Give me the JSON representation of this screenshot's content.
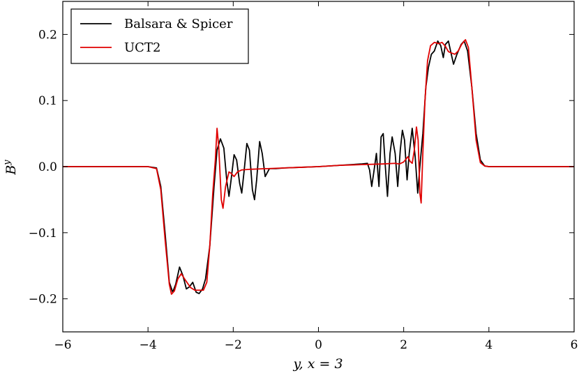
{
  "chart_data": {
    "type": "line",
    "title": "",
    "xlabel": "y,  x = 3",
    "ylabel": "B",
    "ylabel_superscript": "y",
    "xlim": [
      -6,
      6
    ],
    "ylim": [
      -0.25,
      0.25
    ],
    "xticks": [
      -6,
      -4,
      -2,
      0,
      2,
      4,
      6
    ],
    "xtick_labels": [
      "−6",
      "−4",
      "−2",
      "0",
      "2",
      "4",
      "6"
    ],
    "yticks": [
      -0.2,
      -0.1,
      0.0,
      0.1,
      0.2
    ],
    "ytick_labels": [
      "−0.2",
      "−0.1",
      "0.0",
      "0.1",
      "0.2"
    ],
    "grid": false,
    "legend_position": "top-left",
    "series": [
      {
        "name": "Balsara & Spicer",
        "color": "#000000",
        "points": [
          [
            -6,
            0
          ],
          [
            -4,
            0
          ],
          [
            -3.8,
            -0.002
          ],
          [
            -3.7,
            -0.03
          ],
          [
            -3.6,
            -0.1
          ],
          [
            -3.5,
            -0.175
          ],
          [
            -3.42,
            -0.19
          ],
          [
            -3.35,
            -0.178
          ],
          [
            -3.26,
            -0.152
          ],
          [
            -3.18,
            -0.165
          ],
          [
            -3.1,
            -0.185
          ],
          [
            -3.03,
            -0.182
          ],
          [
            -2.95,
            -0.175
          ],
          [
            -2.87,
            -0.19
          ],
          [
            -2.8,
            -0.192
          ],
          [
            -2.72,
            -0.185
          ],
          [
            -2.65,
            -0.17
          ],
          [
            -2.55,
            -0.12
          ],
          [
            -2.45,
            -0.03
          ],
          [
            -2.38,
            0.025
          ],
          [
            -2.3,
            0.042
          ],
          [
            -2.22,
            0.028
          ],
          [
            -2.15,
            -0.022
          ],
          [
            -2.1,
            -0.045
          ],
          [
            -2.05,
            -0.02
          ],
          [
            -1.98,
            0.018
          ],
          [
            -1.92,
            0.01
          ],
          [
            -1.85,
            -0.025
          ],
          [
            -1.8,
            -0.04
          ],
          [
            -1.75,
            -0.01
          ],
          [
            -1.68,
            0.035
          ],
          [
            -1.62,
            0.025
          ],
          [
            -1.55,
            -0.035
          ],
          [
            -1.5,
            -0.05
          ],
          [
            -1.45,
            -0.02
          ],
          [
            -1.38,
            0.038
          ],
          [
            -1.32,
            0.02
          ],
          [
            -1.25,
            -0.015
          ],
          [
            -1.15,
            -0.003
          ],
          [
            -1.0,
            -0.003
          ],
          [
            -0.8,
            -0.002
          ],
          [
            -0.4,
            -0.001
          ],
          [
            0,
            0.0
          ],
          [
            0.5,
            0.002
          ],
          [
            1.0,
            0.004
          ],
          [
            1.15,
            0.005
          ],
          [
            1.2,
            -0.005
          ],
          [
            1.25,
            -0.03
          ],
          [
            1.3,
            -0.008
          ],
          [
            1.36,
            0.02
          ],
          [
            1.42,
            -0.03
          ],
          [
            1.47,
            0.045
          ],
          [
            1.52,
            0.05
          ],
          [
            1.57,
            0.0
          ],
          [
            1.62,
            -0.045
          ],
          [
            1.68,
            0.02
          ],
          [
            1.73,
            0.045
          ],
          [
            1.8,
            0.02
          ],
          [
            1.86,
            -0.03
          ],
          [
            1.92,
            0.025
          ],
          [
            1.97,
            0.055
          ],
          [
            2.02,
            0.04
          ],
          [
            2.08,
            -0.02
          ],
          [
            2.13,
            0.02
          ],
          [
            2.2,
            0.058
          ],
          [
            2.27,
            0.015
          ],
          [
            2.33,
            -0.04
          ],
          [
            2.38,
            0.0
          ],
          [
            2.45,
            0.05
          ],
          [
            2.52,
            0.12
          ],
          [
            2.58,
            0.15
          ],
          [
            2.65,
            0.17
          ],
          [
            2.72,
            0.175
          ],
          [
            2.8,
            0.19
          ],
          [
            2.87,
            0.183
          ],
          [
            2.93,
            0.165
          ],
          [
            2.98,
            0.185
          ],
          [
            3.05,
            0.19
          ],
          [
            3.1,
            0.175
          ],
          [
            3.17,
            0.155
          ],
          [
            3.25,
            0.17
          ],
          [
            3.35,
            0.185
          ],
          [
            3.42,
            0.19
          ],
          [
            3.5,
            0.175
          ],
          [
            3.6,
            0.12
          ],
          [
            3.7,
            0.05
          ],
          [
            3.8,
            0.01
          ],
          [
            3.9,
            0.001
          ],
          [
            4.0,
            0
          ],
          [
            6,
            0
          ]
        ]
      },
      {
        "name": "UCT2",
        "color": "#e00000",
        "points": [
          [
            -6,
            0
          ],
          [
            -4,
            0
          ],
          [
            -3.8,
            -0.003
          ],
          [
            -3.7,
            -0.035
          ],
          [
            -3.6,
            -0.11
          ],
          [
            -3.5,
            -0.178
          ],
          [
            -3.45,
            -0.193
          ],
          [
            -3.38,
            -0.188
          ],
          [
            -3.3,
            -0.17
          ],
          [
            -3.22,
            -0.162
          ],
          [
            -3.12,
            -0.172
          ],
          [
            -3.0,
            -0.183
          ],
          [
            -2.9,
            -0.187
          ],
          [
            -2.8,
            -0.187
          ],
          [
            -2.7,
            -0.187
          ],
          [
            -2.62,
            -0.175
          ],
          [
            -2.55,
            -0.12
          ],
          [
            -2.48,
            -0.04
          ],
          [
            -2.42,
            0.01
          ],
          [
            -2.38,
            0.058
          ],
          [
            -2.34,
            0.03
          ],
          [
            -2.28,
            -0.05
          ],
          [
            -2.24,
            -0.063
          ],
          [
            -2.18,
            -0.03
          ],
          [
            -2.1,
            -0.008
          ],
          [
            -2.05,
            -0.01
          ],
          [
            -1.98,
            -0.015
          ],
          [
            -1.9,
            -0.008
          ],
          [
            -1.8,
            -0.005
          ],
          [
            -1.6,
            -0.004
          ],
          [
            -1.2,
            -0.003
          ],
          [
            -0.8,
            -0.002
          ],
          [
            -0.4,
            -0.001
          ],
          [
            0,
            0.0
          ],
          [
            0.5,
            0.002
          ],
          [
            1.0,
            0.003
          ],
          [
            1.5,
            0.004
          ],
          [
            1.8,
            0.005
          ],
          [
            1.9,
            0.004
          ],
          [
            2.0,
            0.007
          ],
          [
            2.1,
            0.015
          ],
          [
            2.15,
            0.008
          ],
          [
            2.2,
            0.005
          ],
          [
            2.25,
            0.025
          ],
          [
            2.3,
            0.06
          ],
          [
            2.34,
            0.04
          ],
          [
            2.38,
            -0.04
          ],
          [
            2.41,
            -0.055
          ],
          [
            2.45,
            0.02
          ],
          [
            2.5,
            0.1
          ],
          [
            2.56,
            0.16
          ],
          [
            2.63,
            0.183
          ],
          [
            2.72,
            0.188
          ],
          [
            2.82,
            0.186
          ],
          [
            2.9,
            0.188
          ],
          [
            2.98,
            0.182
          ],
          [
            3.05,
            0.174
          ],
          [
            3.12,
            0.172
          ],
          [
            3.2,
            0.17
          ],
          [
            3.28,
            0.175
          ],
          [
            3.36,
            0.185
          ],
          [
            3.45,
            0.192
          ],
          [
            3.52,
            0.18
          ],
          [
            3.6,
            0.12
          ],
          [
            3.7,
            0.04
          ],
          [
            3.8,
            0.006
          ],
          [
            3.9,
            0.001
          ],
          [
            4.0,
            0
          ],
          [
            6,
            0
          ]
        ]
      }
    ]
  }
}
